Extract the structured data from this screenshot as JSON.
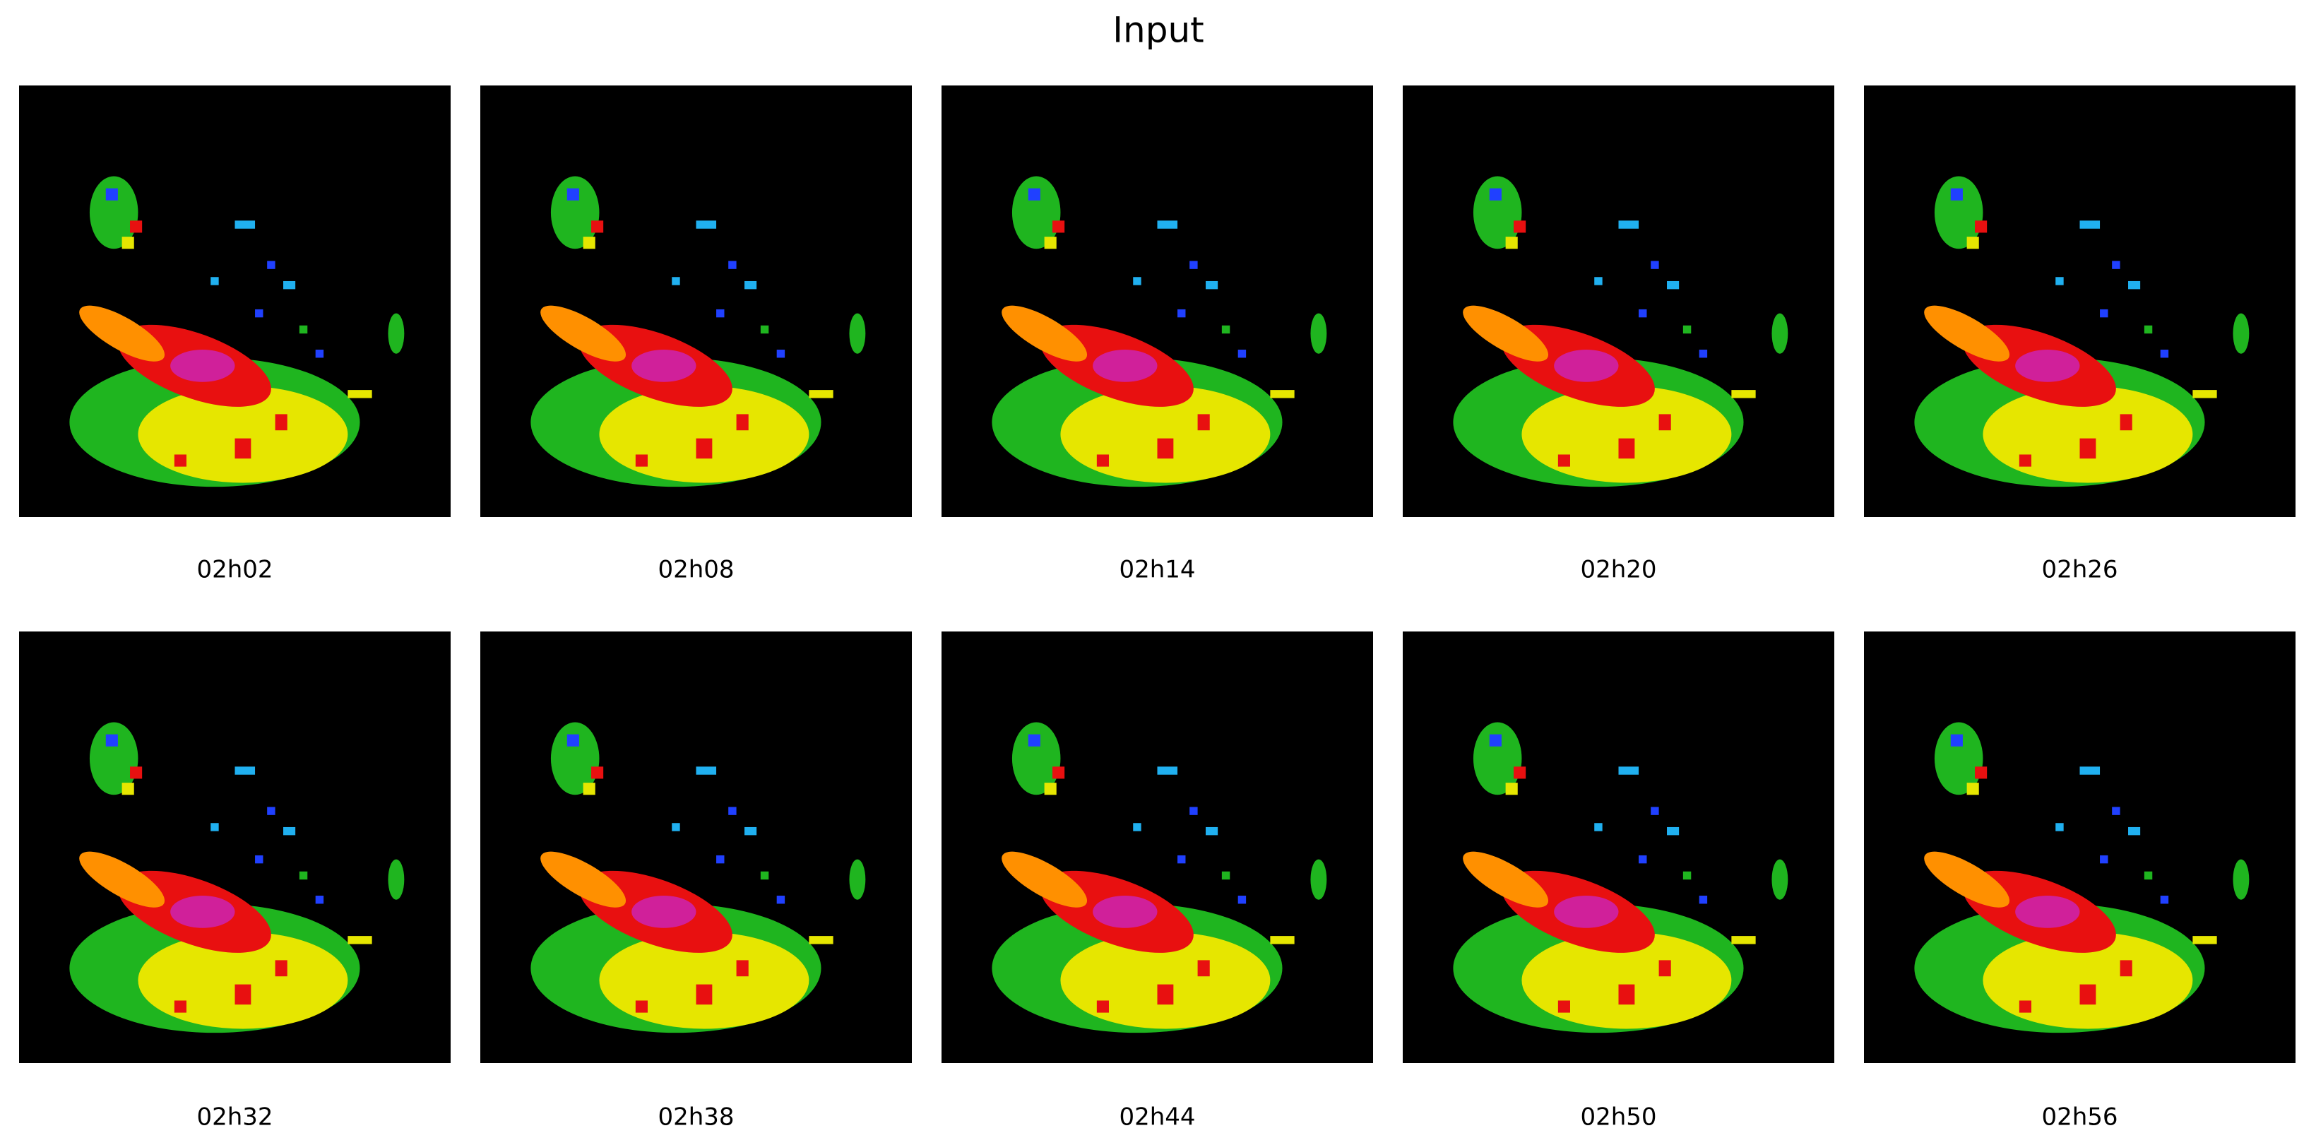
{
  "title": "Input",
  "panels": [
    {
      "label": "02h02"
    },
    {
      "label": "02h08"
    },
    {
      "label": "02h14"
    },
    {
      "label": "02h20"
    },
    {
      "label": "02h26"
    },
    {
      "label": "02h32"
    },
    {
      "label": "02h38"
    },
    {
      "label": "02h44"
    },
    {
      "label": "02h50"
    },
    {
      "label": "02h56"
    }
  ]
}
